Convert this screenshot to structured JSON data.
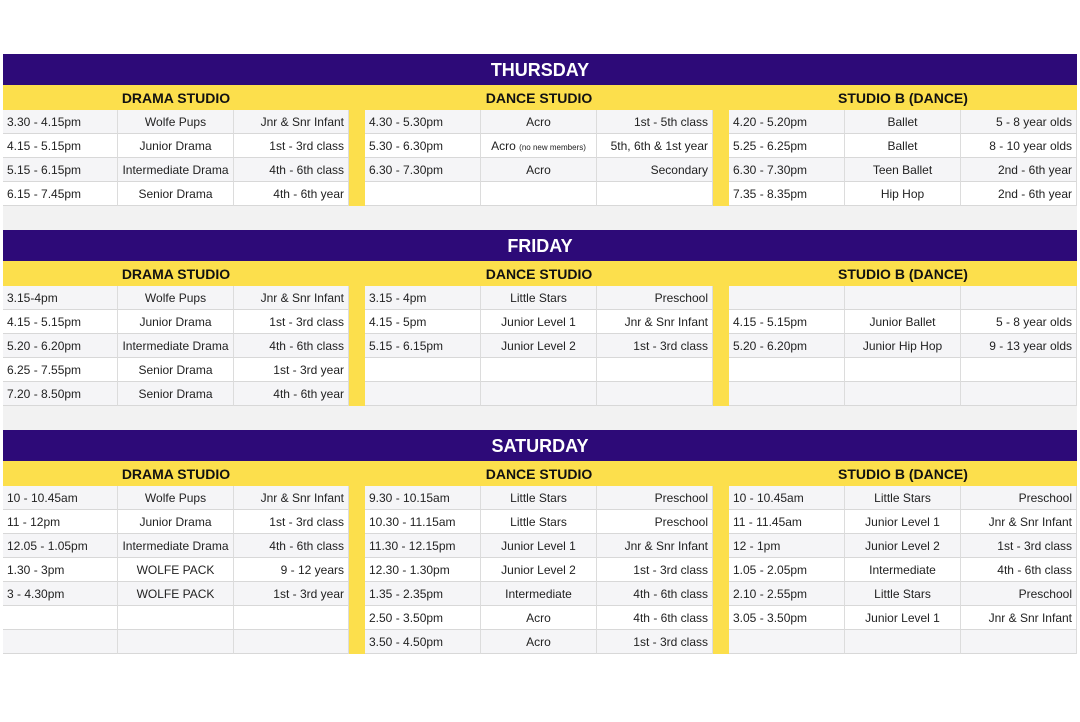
{
  "colors": {
    "day_header": "#2d0a78",
    "studio_header": "#fcdf4c",
    "separator": "#fcdf4c"
  },
  "days": [
    {
      "title": "THURSDAY",
      "studios": [
        "DRAMA STUDIO",
        "DANCE STUDIO",
        "STUDIO B (DANCE)"
      ],
      "rows": [
        [
          [
            "3.30 - 4.15pm",
            "Wolfe Pups",
            "Jnr & Snr Infant"
          ],
          [
            "4.30 - 5.30pm",
            "Acro",
            "1st - 5th class"
          ],
          [
            "4.20 - 5.20pm",
            "Ballet",
            "5 - 8 year olds"
          ]
        ],
        [
          [
            "4.15 - 5.15pm",
            "Junior Drama",
            "1st - 3rd class"
          ],
          [
            "5.30 - 6.30pm",
            {
              "text": "Acro",
              "note": "(no new members)"
            },
            "5th, 6th & 1st year"
          ],
          [
            "5.25 - 6.25pm",
            "Ballet",
            "8 - 10 year olds"
          ]
        ],
        [
          [
            "5.15 - 6.15pm",
            "Intermediate Drama",
            "4th - 6th class"
          ],
          [
            "6.30 - 7.30pm",
            "Acro",
            "Secondary"
          ],
          [
            "6.30 - 7.30pm",
            "Teen Ballet",
            "2nd - 6th year"
          ]
        ],
        [
          [
            "6.15 - 7.45pm",
            "Senior Drama",
            "4th - 6th year"
          ],
          [
            "",
            "",
            ""
          ],
          [
            "7.35 - 8.35pm",
            "Hip Hop",
            "2nd - 6th year"
          ]
        ]
      ]
    },
    {
      "title": "FRIDAY",
      "studios": [
        "DRAMA STUDIO",
        "DANCE STUDIO",
        "STUDIO B (DANCE)"
      ],
      "rows": [
        [
          [
            "3.15-4pm",
            "Wolfe Pups",
            "Jnr & Snr Infant"
          ],
          [
            "3.15 - 4pm",
            "Little Stars",
            "Preschool"
          ],
          [
            "",
            "",
            ""
          ]
        ],
        [
          [
            "4.15 - 5.15pm",
            "Junior Drama",
            "1st - 3rd class"
          ],
          [
            "4.15 - 5pm",
            "Junior Level 1",
            "Jnr & Snr Infant"
          ],
          [
            "4.15 - 5.15pm",
            "Junior Ballet",
            "5 - 8 year olds"
          ]
        ],
        [
          [
            "5.20 - 6.20pm",
            "Intermediate Drama",
            "4th - 6th class"
          ],
          [
            "5.15 - 6.15pm",
            "Junior Level 2",
            "1st - 3rd class"
          ],
          [
            "5.20 - 6.20pm",
            "Junior Hip Hop",
            "9 - 13 year olds"
          ]
        ],
        [
          [
            "6.25 - 7.55pm",
            "Senior Drama",
            "1st - 3rd year"
          ],
          [
            "",
            "",
            ""
          ],
          [
            "",
            "",
            ""
          ]
        ],
        [
          [
            "7.20 - 8.50pm",
            "Senior Drama",
            "4th - 6th year"
          ],
          [
            "",
            "",
            ""
          ],
          [
            "",
            "",
            ""
          ]
        ]
      ]
    },
    {
      "title": "SATURDAY",
      "studios": [
        "DRAMA STUDIO",
        "DANCE STUDIO",
        "STUDIO B (DANCE)"
      ],
      "rows": [
        [
          [
            "10 - 10.45am",
            "Wolfe Pups",
            "Jnr & Snr Infant"
          ],
          [
            "9.30 - 10.15am",
            "Little Stars",
            "Preschool"
          ],
          [
            "10 - 10.45am",
            "Little Stars",
            "Preschool"
          ]
        ],
        [
          [
            "11 - 12pm",
            "Junior Drama",
            "1st - 3rd class"
          ],
          [
            "10.30 - 11.15am",
            "Little Stars",
            "Preschool"
          ],
          [
            "11 - 11.45am",
            "Junior Level 1",
            "Jnr & Snr Infant"
          ]
        ],
        [
          [
            "12.05 - 1.05pm",
            "Intermediate Drama",
            "4th - 6th class"
          ],
          [
            "11.30 - 12.15pm",
            "Junior Level 1",
            "Jnr & Snr Infant"
          ],
          [
            "12 - 1pm",
            "Junior Level 2",
            "1st - 3rd class"
          ]
        ],
        [
          [
            "1.30 - 3pm",
            "WOLFE PACK",
            "9 - 12 years"
          ],
          [
            "12.30 - 1.30pm",
            "Junior Level 2",
            "1st - 3rd class"
          ],
          [
            "1.05 - 2.05pm",
            "Intermediate",
            "4th - 6th class"
          ]
        ],
        [
          [
            "3 - 4.30pm",
            "WOLFE PACK",
            "1st - 3rd year"
          ],
          [
            "1.35 - 2.35pm",
            "Intermediate",
            "4th - 6th class"
          ],
          [
            "2.10 - 2.55pm",
            "Little Stars",
            "Preschool"
          ]
        ],
        [
          [
            "",
            "",
            ""
          ],
          [
            "2.50 - 3.50pm",
            "Acro",
            "4th - 6th class"
          ],
          [
            "3.05 - 3.50pm",
            "Junior Level 1",
            "Jnr & Snr Infant"
          ]
        ],
        [
          [
            "",
            "",
            ""
          ],
          [
            "3.50 - 4.50pm",
            "Acro",
            "1st - 3rd class"
          ],
          [
            "",
            "",
            ""
          ]
        ]
      ]
    }
  ]
}
